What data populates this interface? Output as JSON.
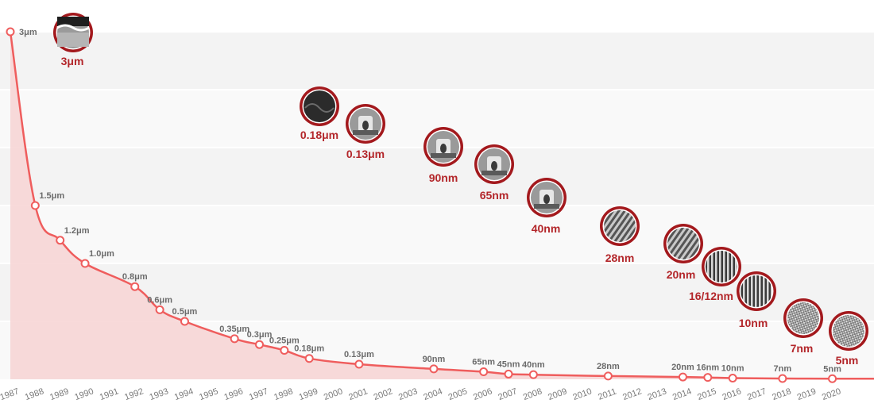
{
  "chart_data": {
    "type": "area",
    "title": "",
    "xlabel": "",
    "ylabel": "",
    "x_range": [
      1987,
      2021
    ],
    "y_range": [
      0,
      3.0
    ],
    "grid": true,
    "colors": {
      "line": "#ef5d5d",
      "fill": "#f7d3d3",
      "node_ring": "#a3191d",
      "node_label": "#b3262a"
    },
    "x_ticks": [
      "1987",
      "1988",
      "1989",
      "1990",
      "1991",
      "1992",
      "1993",
      "1994",
      "1995",
      "1996",
      "1997",
      "1998",
      "1999",
      "2000",
      "2001",
      "2002",
      "2003",
      "2004",
      "2005",
      "2006",
      "2007",
      "2008",
      "2009",
      "2010",
      "2011",
      "2012",
      "2013",
      "2014",
      "2015",
      "2016",
      "2017",
      "2018",
      "2019",
      "2020"
    ],
    "points": [
      {
        "x": 1987,
        "y": 3.0,
        "label": "3μm"
      },
      {
        "x": 1988,
        "y": 1.5,
        "label": "1.5μm"
      },
      {
        "x": 1989,
        "y": 1.2,
        "label": "1.2μm"
      },
      {
        "x": 1990,
        "y": 1.0,
        "label": "1.0μm"
      },
      {
        "x": 1992,
        "y": 0.8,
        "label": "0.8μm"
      },
      {
        "x": 1993,
        "y": 0.6,
        "label": "0.6μm"
      },
      {
        "x": 1994,
        "y": 0.5,
        "label": "0.5μm"
      },
      {
        "x": 1996,
        "y": 0.35,
        "label": "0.35μm"
      },
      {
        "x": 1997,
        "y": 0.3,
        "label": "0.3μm"
      },
      {
        "x": 1998,
        "y": 0.25,
        "label": "0.25μm"
      },
      {
        "x": 1999,
        "y": 0.18,
        "label": "0.18μm"
      },
      {
        "x": 2001,
        "y": 0.13,
        "label": "0.13μm"
      },
      {
        "x": 2004,
        "y": 0.09,
        "label": "90nm"
      },
      {
        "x": 2006,
        "y": 0.065,
        "label": "65nm"
      },
      {
        "x": 2007,
        "y": 0.045,
        "label": "45nm"
      },
      {
        "x": 2008,
        "y": 0.04,
        "label": "40nm"
      },
      {
        "x": 2011,
        "y": 0.028,
        "label": "28nm"
      },
      {
        "x": 2014,
        "y": 0.02,
        "label": "20nm"
      },
      {
        "x": 2015,
        "y": 0.016,
        "label": "16nm"
      },
      {
        "x": 2016,
        "y": 0.01,
        "label": "10nm"
      },
      {
        "x": 2018,
        "y": 0.007,
        "label": "7nm"
      },
      {
        "x": 2020,
        "y": 0.005,
        "label": "5nm"
      }
    ],
    "nodes": [
      {
        "label": "3μm",
        "pattern": "cross-section"
      },
      {
        "label": "0.18μm",
        "pattern": "cross-section-dark"
      },
      {
        "label": "0.13μm",
        "pattern": "transistor-sem"
      },
      {
        "label": "90nm",
        "pattern": "transistor-sem"
      },
      {
        "label": "65nm",
        "pattern": "transistor-sem"
      },
      {
        "label": "40nm",
        "pattern": "transistor-sem"
      },
      {
        "label": "28nm",
        "pattern": "diagonal-fins"
      },
      {
        "label": "20nm",
        "pattern": "diagonal-fins"
      },
      {
        "label": "16/12nm",
        "pattern": "vertical-fins"
      },
      {
        "label": "10nm",
        "pattern": "vertical-fins"
      },
      {
        "label": "7nm",
        "pattern": "dense-mesh"
      },
      {
        "label": "5nm",
        "pattern": "dense-mesh"
      }
    ]
  }
}
